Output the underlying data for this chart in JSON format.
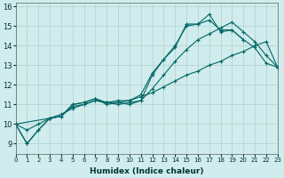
{
  "xlabel": "Humidex (Indice chaleur)",
  "bg_color": "#d0ecec",
  "grid_color": "#b0d0d0",
  "line_color": "#006666",
  "xlim": [
    0,
    23
  ],
  "ylim": [
    8.5,
    16.2
  ],
  "xticks": [
    0,
    1,
    2,
    3,
    4,
    5,
    6,
    7,
    8,
    9,
    10,
    11,
    12,
    13,
    14,
    15,
    16,
    17,
    18,
    19,
    20,
    21,
    22,
    23
  ],
  "yticks": [
    9,
    10,
    11,
    12,
    13,
    14,
    15,
    16
  ],
  "lines": [
    {
      "x": [
        0,
        1,
        2,
        3,
        4,
        5,
        6,
        7,
        8,
        9,
        10,
        11,
        12,
        13,
        14,
        15,
        16,
        17,
        18,
        19,
        20,
        21,
        22,
        23
      ],
      "y": [
        10.0,
        9.0,
        9.7,
        10.3,
        10.4,
        11.0,
        11.1,
        11.3,
        11.0,
        11.1,
        11.0,
        11.2,
        12.5,
        13.3,
        13.9,
        15.1,
        15.1,
        15.6,
        14.7,
        14.8,
        14.3,
        13.9,
        13.1,
        12.9
      ]
    },
    {
      "x": [
        0,
        1,
        2,
        3,
        4,
        5,
        6,
        7,
        8,
        9,
        10,
        11,
        12,
        13,
        14,
        15,
        16,
        17,
        18,
        19,
        20
      ],
      "y": [
        10.0,
        9.0,
        9.7,
        10.3,
        10.4,
        11.0,
        11.1,
        11.3,
        11.1,
        11.2,
        11.2,
        11.5,
        12.6,
        13.3,
        14.0,
        15.0,
        15.1,
        15.3,
        14.8,
        14.8,
        14.3
      ]
    },
    {
      "x": [
        0,
        3,
        4,
        5,
        6,
        7,
        8,
        9,
        10,
        11,
        12,
        13,
        14,
        15,
        16,
        17,
        18,
        19,
        20,
        21,
        22,
        23
      ],
      "y": [
        10.0,
        10.3,
        10.4,
        10.9,
        11.0,
        11.2,
        11.1,
        11.0,
        11.1,
        11.2,
        11.8,
        12.5,
        13.2,
        13.8,
        14.3,
        14.6,
        14.9,
        15.2,
        14.7,
        14.2,
        13.5,
        12.9
      ]
    },
    {
      "x": [
        0,
        1,
        2,
        3,
        4,
        5,
        6,
        7,
        8,
        9,
        10,
        11,
        12,
        13,
        14,
        15,
        16,
        17,
        18,
        19,
        20,
        21,
        22,
        23
      ],
      "y": [
        10.0,
        9.7,
        10.0,
        10.3,
        10.5,
        10.8,
        11.0,
        11.2,
        11.1,
        11.1,
        11.2,
        11.4,
        11.6,
        11.9,
        12.2,
        12.5,
        12.7,
        13.0,
        13.2,
        13.5,
        13.7,
        14.0,
        14.2,
        12.9
      ]
    }
  ]
}
